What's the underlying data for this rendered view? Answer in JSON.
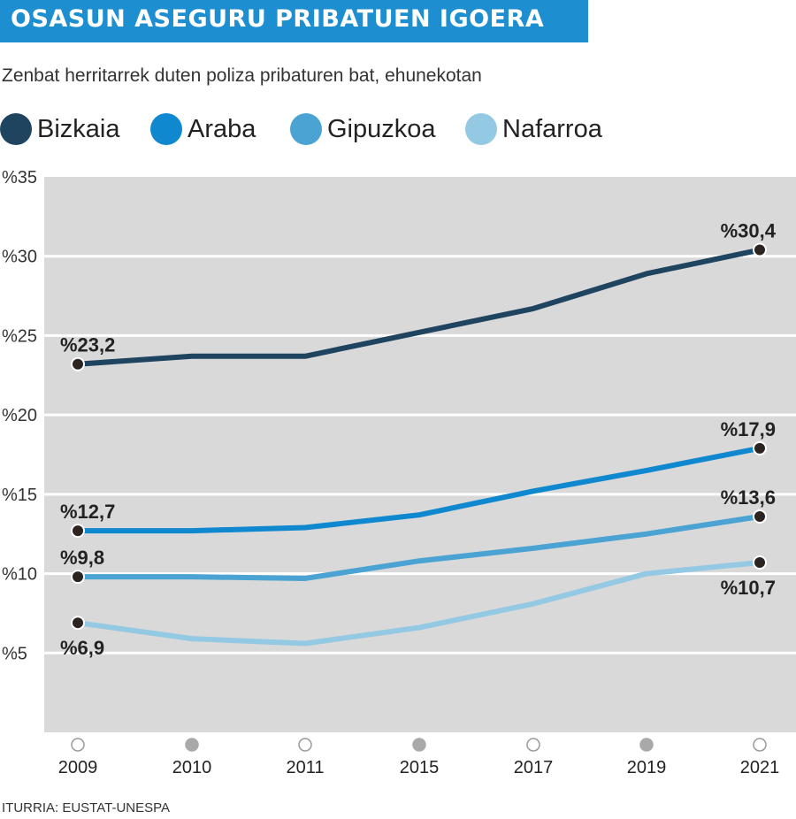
{
  "header": {
    "title": "OSASUN ASEGURU PRIBATUEN IGOERA",
    "subtitle": "Zenbat herritarrek duten poliza pribaturen bat, ehunekotan"
  },
  "source": "ITURRIA: EUSTAT-UNESPA",
  "chart_data": {
    "type": "line",
    "categories": [
      "2009",
      "2010",
      "2011",
      "2015",
      "2017",
      "2019",
      "2021"
    ],
    "series": [
      {
        "name": "Bizkaia",
        "color": "#1f4460",
        "values": [
          23.2,
          23.7,
          23.7,
          25.2,
          26.7,
          28.9,
          30.4
        ]
      },
      {
        "name": "Araba",
        "color": "#0f88cf",
        "values": [
          12.7,
          12.7,
          12.9,
          13.7,
          15.2,
          16.5,
          17.9
        ]
      },
      {
        "name": "Gipuzkoa",
        "color": "#4aa3d2",
        "values": [
          9.8,
          9.8,
          9.7,
          10.8,
          11.6,
          12.5,
          13.6
        ]
      },
      {
        "name": "Nafarroa",
        "color": "#93c9e3",
        "values": [
          6.9,
          5.9,
          5.6,
          6.6,
          8.1,
          10.0,
          10.7
        ]
      }
    ],
    "ylim": [
      0,
      35
    ],
    "yticks": [
      {
        "value": 35,
        "label": "%35"
      },
      {
        "value": 30,
        "label": "%30"
      },
      {
        "value": 25,
        "label": "%25"
      },
      {
        "value": 20,
        "label": "%20"
      },
      {
        "value": 15,
        "label": "%15"
      },
      {
        "value": 10,
        "label": "%10"
      },
      {
        "value": 5,
        "label": "%5"
      }
    ],
    "x_markers": [
      "open",
      "filled",
      "open",
      "filled",
      "open",
      "filled",
      "open"
    ],
    "annotations": [
      {
        "series": "Bizkaia",
        "index": 0,
        "label": "%23,2",
        "position": "above"
      },
      {
        "series": "Bizkaia",
        "index": 6,
        "label": "%30,4",
        "position": "above"
      },
      {
        "series": "Araba",
        "index": 0,
        "label": "%12,7",
        "position": "above"
      },
      {
        "series": "Araba",
        "index": 6,
        "label": "%17,9",
        "position": "above"
      },
      {
        "series": "Gipuzkoa",
        "index": 0,
        "label": "%9,8",
        "position": "above"
      },
      {
        "series": "Gipuzkoa",
        "index": 6,
        "label": "%13,6",
        "position": "above"
      },
      {
        "series": "Nafarroa",
        "index": 0,
        "label": "%6,9",
        "position": "below"
      },
      {
        "series": "Nafarroa",
        "index": 6,
        "label": "%10,7",
        "position": "below"
      }
    ],
    "grid": true,
    "legend": "top"
  }
}
